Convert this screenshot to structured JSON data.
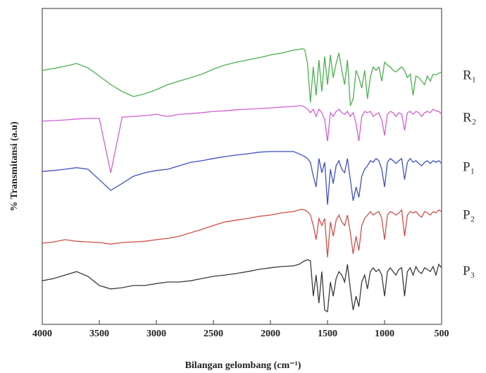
{
  "chart_data": {
    "type": "line",
    "x_label": "Bilangan gelombang (cm⁻¹)",
    "y_label": "% Transmitansi (a.u)",
    "xlim": [
      4000,
      500
    ],
    "xticks": [
      4000,
      3500,
      3000,
      2500,
      2000,
      1500,
      1000,
      500
    ],
    "ylim": [
      0,
      100
    ],
    "x": [
      4000,
      3900,
      3800,
      3700,
      3600,
      3500,
      3400,
      3300,
      3200,
      3100,
      3000,
      2900,
      2800,
      2700,
      2600,
      2500,
      2400,
      2300,
      2200,
      2100,
      2000,
      1900,
      1800,
      1750,
      1725,
      1700,
      1675,
      1650,
      1625,
      1600,
      1575,
      1550,
      1525,
      1500,
      1475,
      1450,
      1425,
      1400,
      1375,
      1350,
      1325,
      1300,
      1275,
      1250,
      1225,
      1200,
      1175,
      1150,
      1125,
      1100,
      1075,
      1050,
      1025,
      1000,
      975,
      950,
      925,
      900,
      875,
      850,
      825,
      800,
      775,
      750,
      725,
      700,
      675,
      650,
      625,
      600,
      575,
      550,
      525,
      500
    ],
    "series": [
      {
        "name": "R₁",
        "color": "#4caf50",
        "values": [
          80.4,
          81,
          81.7,
          82.6,
          81.2,
          78.6,
          75.9,
          73.7,
          72.1,
          73,
          74.3,
          75.9,
          77,
          78.1,
          79.2,
          80.8,
          82.1,
          83,
          83.7,
          84.4,
          85.3,
          85.9,
          86.8,
          87,
          87.3,
          87,
          82.6,
          70.3,
          81.5,
          72.5,
          83.7,
          73.7,
          84.8,
          75.9,
          85.3,
          78.1,
          82.6,
          85.9,
          80.4,
          75.9,
          83.7,
          69.2,
          71.4,
          80.4,
          78.1,
          74.8,
          80.4,
          71.4,
          78.1,
          81.5,
          80.4,
          81.5,
          77,
          83,
          82.1,
          81.5,
          80.4,
          79.9,
          80.8,
          81.5,
          80.4,
          78.1,
          79.2,
          72.5,
          78.6,
          78.1,
          77,
          75.9,
          78.6,
          77,
          79.2,
          79,
          79.5,
          79.9
        ]
      },
      {
        "name": "R₂",
        "color": "#d45fd6",
        "values": [
          64.3,
          64.5,
          64.7,
          65,
          65.2,
          65.2,
          48,
          65.6,
          65.8,
          66.1,
          66.5,
          65.8,
          66.5,
          66.7,
          67,
          67.4,
          67.6,
          67.9,
          68.1,
          68.3,
          68.5,
          68.8,
          69,
          69.2,
          69.2,
          68.8,
          68.1,
          67,
          68.1,
          65.8,
          68.1,
          67,
          64.7,
          58,
          67,
          65.8,
          67.4,
          68.1,
          67,
          66.5,
          67.4,
          65.8,
          67,
          63.6,
          58,
          65.8,
          67.4,
          67,
          67.4,
          65.8,
          66.5,
          67,
          64.7,
          59.8,
          66.5,
          67.4,
          67,
          65.8,
          67,
          66.5,
          61.4,
          67,
          67.4,
          66.5,
          67.4,
          67,
          65.8,
          67,
          67.4,
          67,
          68.1,
          67.6,
          67.4,
          66.5
        ]
      },
      {
        "name": "P₁",
        "color": "#3f51c4",
        "values": [
          48.4,
          48.7,
          49.1,
          49.6,
          49.1,
          45.8,
          42.4,
          44.6,
          46.9,
          48,
          48.7,
          49.1,
          50.2,
          51.3,
          51.8,
          52.5,
          53.1,
          53.6,
          54,
          54.5,
          54.7,
          54.7,
          54.7,
          54,
          53.6,
          53.1,
          52.5,
          51.3,
          46.9,
          43.5,
          52.5,
          48,
          51.3,
          37.9,
          49.1,
          44.6,
          50.2,
          51.8,
          49.1,
          48,
          52.5,
          45.8,
          39.1,
          43.5,
          40.2,
          46.9,
          49.1,
          50.2,
          51.8,
          51.3,
          52.5,
          51.8,
          49.1,
          43.5,
          51.3,
          52.5,
          51.8,
          50.9,
          51.8,
          52.5,
          45.8,
          51.3,
          52.5,
          51.3,
          51.8,
          50.9,
          50.2,
          51.3,
          51.8,
          50.9,
          51.8,
          51.3,
          51.8,
          50.9
        ]
      },
      {
        "name": "P₂",
        "color": "#d0504a",
        "values": [
          25.7,
          26.1,
          26.8,
          26.3,
          26.1,
          25.9,
          25.4,
          25.9,
          26.1,
          26.3,
          26.8,
          27.2,
          27.9,
          29,
          30.1,
          31.3,
          32.4,
          33,
          33.5,
          34.2,
          34.6,
          35.3,
          35.7,
          36.2,
          36.4,
          36.2,
          35.7,
          34.6,
          31.3,
          26.8,
          33.5,
          31.3,
          33.5,
          21.2,
          32.4,
          27.9,
          33,
          34.6,
          32.4,
          31.3,
          34.6,
          29,
          22.3,
          27.9,
          23.4,
          31.3,
          33.5,
          34.6,
          35.7,
          34.6,
          35.3,
          35.7,
          33.5,
          26.8,
          34.6,
          35.7,
          35.3,
          34.6,
          35.3,
          36.2,
          27.9,
          34.6,
          35.7,
          35.3,
          35.7,
          34.6,
          33.9,
          35.7,
          35.3,
          34.6,
          35.7,
          35.3,
          36.2,
          35.7
        ]
      },
      {
        "name": "P₃",
        "color": "#3a3a3a",
        "values": [
          13.8,
          14.5,
          15.6,
          16.7,
          15.2,
          12.3,
          11.2,
          11.6,
          12.3,
          12.3,
          12.9,
          13.4,
          13.4,
          13.8,
          14.5,
          15.2,
          15.6,
          16.1,
          16.7,
          17.4,
          17.9,
          18.3,
          18.5,
          19,
          19.6,
          20.1,
          20.5,
          20.1,
          8.9,
          15.6,
          6.7,
          16.7,
          4.5,
          4,
          13.4,
          8.9,
          14.5,
          16.7,
          15.6,
          13.4,
          19,
          11.2,
          4.5,
          8.9,
          5.6,
          13.4,
          15.6,
          11.2,
          16.7,
          17.9,
          16.7,
          17.4,
          15.6,
          8.9,
          16.7,
          17.9,
          16.7,
          15.6,
          17.4,
          17.9,
          8.9,
          16.7,
          17.9,
          15.6,
          18.3,
          16.7,
          16.1,
          17.9,
          17.4,
          16.7,
          18.3,
          15.6,
          19,
          17.9
        ]
      }
    ]
  }
}
